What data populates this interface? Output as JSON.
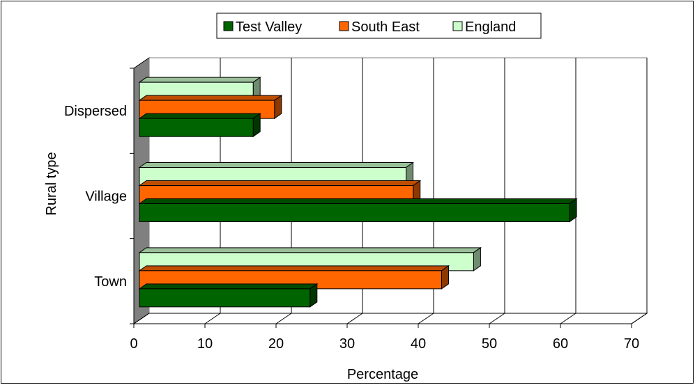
{
  "chart_data": {
    "type": "bar",
    "orientation": "horizontal",
    "three_d": true,
    "categories": [
      "Town",
      "Village",
      "Dispersed"
    ],
    "series": [
      {
        "name": "Test Valley",
        "values": [
          24,
          60.5,
          16
        ],
        "color": "#006400"
      },
      {
        "name": "South East",
        "values": [
          42.5,
          38.5,
          19
        ],
        "color": "#ff6600"
      },
      {
        "name": "England",
        "values": [
          47,
          37.5,
          16
        ],
        "color": "#ccffcc"
      }
    ],
    "xlabel": "Percentage",
    "ylabel": "Rural type",
    "xlim": [
      0,
      70
    ],
    "xticks": [
      "0",
      "10",
      "20",
      "30",
      "40",
      "50",
      "60",
      "70"
    ],
    "grid": true,
    "legend_position": "top"
  }
}
